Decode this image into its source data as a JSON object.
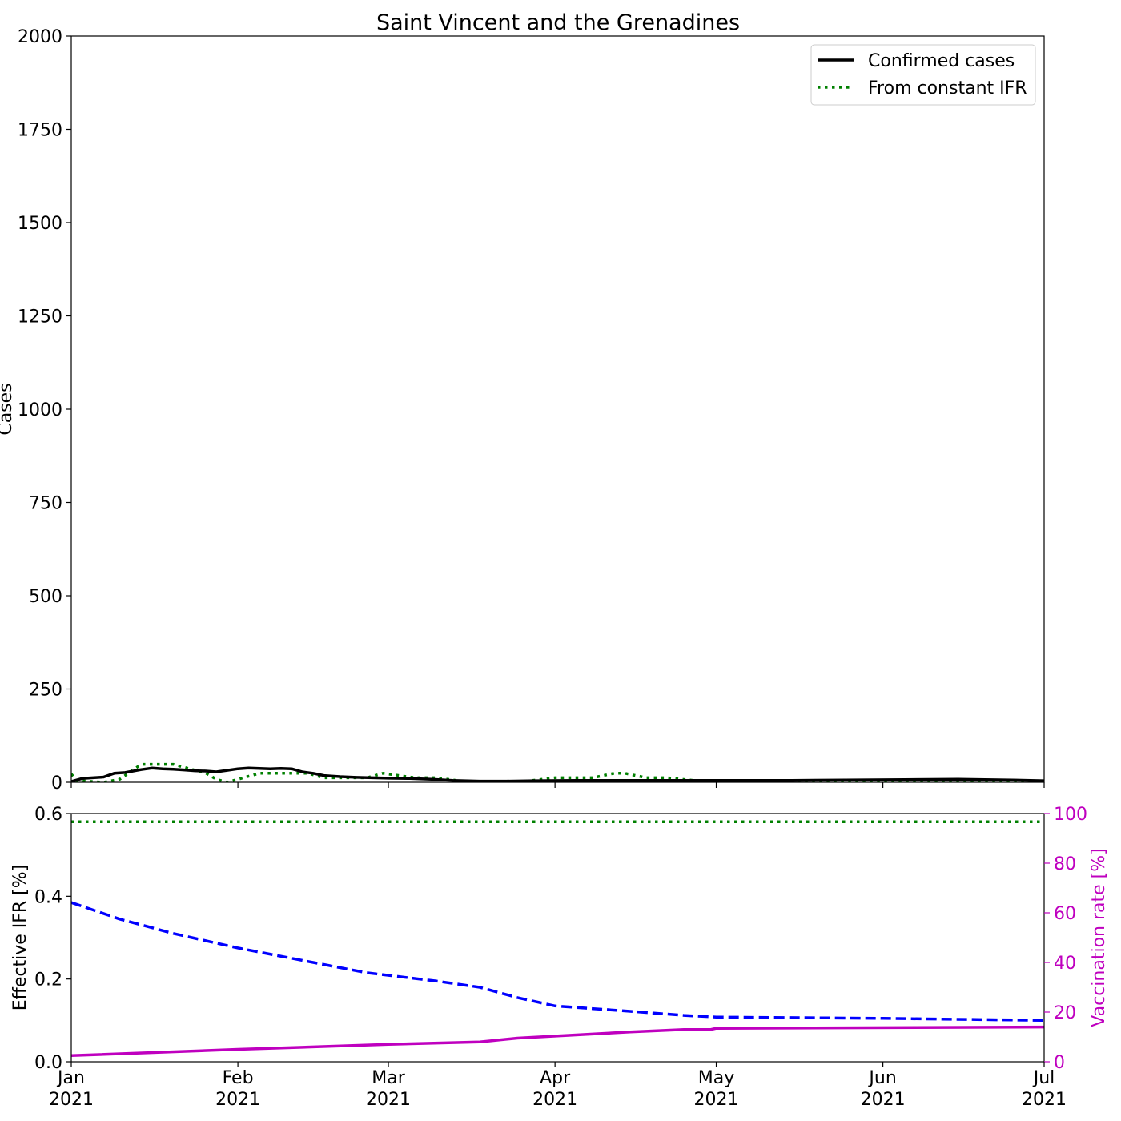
{
  "title": "Saint Vincent and the Grenadines",
  "colors": {
    "confirmed": "#000000",
    "constant_ifr": "#008000",
    "effective_ifr": "#0000ff",
    "vaccination": "#bf00bf"
  },
  "chart_data": [
    {
      "type": "line",
      "title": "Saint Vincent and the Grenadines",
      "xlabel": "",
      "ylabel": "Cases",
      "xlim": [
        "2021-01-01",
        "2021-07-01"
      ],
      "ylim": [
        0,
        2000
      ],
      "yticks": [
        0,
        250,
        500,
        750,
        1000,
        1250,
        1500,
        1750,
        2000
      ],
      "xticks": [
        {
          "date": "2021-01-01",
          "month": "Jan",
          "year": "2021"
        },
        {
          "date": "2021-02-01",
          "month": "Feb",
          "year": "2021"
        },
        {
          "date": "2021-03-01",
          "month": "Mar",
          "year": "2021"
        },
        {
          "date": "2021-04-01",
          "month": "Apr",
          "year": "2021"
        },
        {
          "date": "2021-05-01",
          "month": "May",
          "year": "2021"
        },
        {
          "date": "2021-06-01",
          "month": "Jun",
          "year": "2021"
        },
        {
          "date": "2021-07-01",
          "month": "Jul",
          "year": "2021"
        }
      ],
      "legend": "upper right",
      "series": [
        {
          "name": "Confirmed cases",
          "style": "solid",
          "x": [
            "2021-01-01",
            "2021-01-03",
            "2021-01-05",
            "2021-01-07",
            "2021-01-09",
            "2021-01-11",
            "2021-01-14",
            "2021-01-16",
            "2021-01-18",
            "2021-01-20",
            "2021-01-22",
            "2021-01-24",
            "2021-01-26",
            "2021-01-28",
            "2021-01-30",
            "2021-02-01",
            "2021-02-03",
            "2021-02-05",
            "2021-02-07",
            "2021-02-09",
            "2021-02-11",
            "2021-02-13",
            "2021-02-15",
            "2021-02-17",
            "2021-02-20",
            "2021-02-23",
            "2021-02-26",
            "2021-03-01",
            "2021-03-05",
            "2021-03-09",
            "2021-03-13",
            "2021-03-18",
            "2021-03-23",
            "2021-03-28",
            "2021-04-05",
            "2021-04-15",
            "2021-04-25",
            "2021-05-05",
            "2021-05-15",
            "2021-05-25",
            "2021-06-05",
            "2021-06-15",
            "2021-06-25",
            "2021-07-01"
          ],
          "values": [
            2,
            10,
            12,
            14,
            24,
            26,
            34,
            38,
            36,
            35,
            33,
            31,
            30,
            28,
            32,
            36,
            38,
            37,
            36,
            37,
            36,
            28,
            24,
            18,
            15,
            13,
            12,
            11,
            10,
            8,
            5,
            3,
            3,
            4,
            5,
            5,
            5,
            5,
            5,
            6,
            7,
            8,
            6,
            4
          ]
        },
        {
          "name": "From constant IFR",
          "style": "dotted",
          "x": [
            "2021-01-01",
            "2021-01-02",
            "2021-01-07",
            "2021-01-10",
            "2021-01-14",
            "2021-01-20",
            "2021-01-23",
            "2021-01-26",
            "2021-01-28",
            "2021-01-30",
            "2021-02-05",
            "2021-02-10",
            "2021-02-14",
            "2021-02-17",
            "2021-02-20",
            "2021-02-25",
            "2021-02-28",
            "2021-03-06",
            "2021-03-10",
            "2021-03-16",
            "2021-03-25",
            "2021-04-01",
            "2021-04-08",
            "2021-04-12",
            "2021-04-14",
            "2021-04-18",
            "2021-04-22",
            "2021-04-30",
            "2021-05-15",
            "2021-06-01",
            "2021-06-15",
            "2021-07-01"
          ],
          "values": [
            22,
            5,
            0,
            8,
            48,
            48,
            36,
            25,
            8,
            0,
            24,
            24,
            24,
            12,
            12,
            12,
            24,
            12,
            12,
            0,
            0,
            12,
            12,
            24,
            24,
            12,
            12,
            0,
            0,
            0,
            0,
            0
          ]
        }
      ]
    },
    {
      "type": "line",
      "xlabel": "",
      "ylabel": "Effective IFR [%]",
      "y2label": "Vaccination rate [%]",
      "xlim": [
        "2021-01-01",
        "2021-07-01"
      ],
      "ylim": [
        0,
        0.6
      ],
      "y2lim": [
        0,
        100
      ],
      "yticks": [
        0.0,
        0.2,
        0.4,
        0.6
      ],
      "y2ticks": [
        0,
        20,
        40,
        60,
        80,
        100
      ],
      "series": [
        {
          "axis": "left",
          "style": "dotted",
          "x": [
            "2021-01-01",
            "2021-07-01"
          ],
          "values": [
            0.58,
            0.58
          ]
        },
        {
          "axis": "left",
          "style": "dashed",
          "x": [
            "2021-01-01",
            "2021-01-10",
            "2021-01-20",
            "2021-02-01",
            "2021-02-15",
            "2021-02-25",
            "2021-03-10",
            "2021-03-18",
            "2021-03-25",
            "2021-04-01",
            "2021-04-15",
            "2021-04-25",
            "2021-05-01",
            "2021-06-01",
            "2021-07-01"
          ],
          "values": [
            0.385,
            0.345,
            0.31,
            0.275,
            0.24,
            0.215,
            0.195,
            0.18,
            0.155,
            0.135,
            0.122,
            0.112,
            0.108,
            0.105,
            0.1
          ]
        },
        {
          "axis": "right",
          "style": "solid",
          "x": [
            "2021-01-01",
            "2021-02-01",
            "2021-03-01",
            "2021-03-18",
            "2021-03-25",
            "2021-04-15",
            "2021-04-25",
            "2021-04-30",
            "2021-05-01",
            "2021-07-01"
          ],
          "values": [
            2.5,
            5,
            7,
            8,
            9.5,
            12,
            13,
            13,
            13.5,
            14
          ]
        }
      ]
    }
  ]
}
